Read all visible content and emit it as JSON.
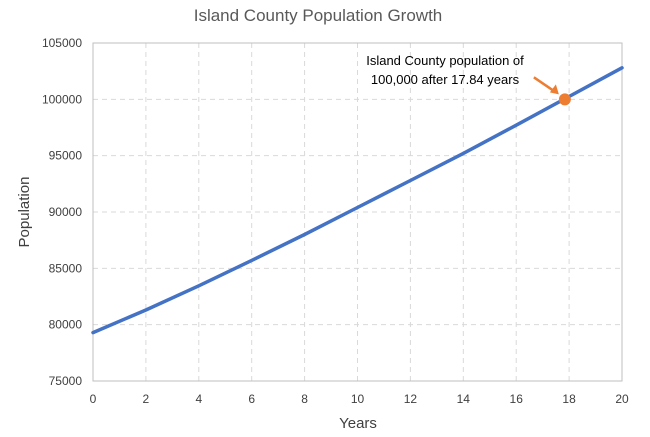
{
  "chart_data": {
    "type": "line",
    "title": "Island County Population Growth",
    "xlabel": "Years",
    "ylabel": "Population",
    "xlim": [
      0,
      20
    ],
    "ylim": [
      75000,
      105000
    ],
    "x_ticks": [
      0,
      2,
      4,
      6,
      8,
      10,
      12,
      14,
      16,
      18,
      20
    ],
    "y_ticks": [
      75000,
      80000,
      85000,
      90000,
      95000,
      100000,
      105000
    ],
    "grid": true,
    "legend": "none",
    "series": [
      {
        "color": "#4472C4",
        "x": [
          0,
          2,
          4,
          6,
          8,
          10,
          12,
          14,
          16,
          18,
          20
        ],
        "y": [
          79300,
          81300,
          83450,
          85700,
          88000,
          90400,
          92800,
          95200,
          97700,
          100250,
          102800
        ]
      }
    ],
    "highlight_point": {
      "x": 17.84,
      "y": 100000,
      "color": "#ED7D31"
    },
    "annotation": {
      "line1": "Island County population of",
      "line2": "100,000 after 17.84 years"
    }
  }
}
